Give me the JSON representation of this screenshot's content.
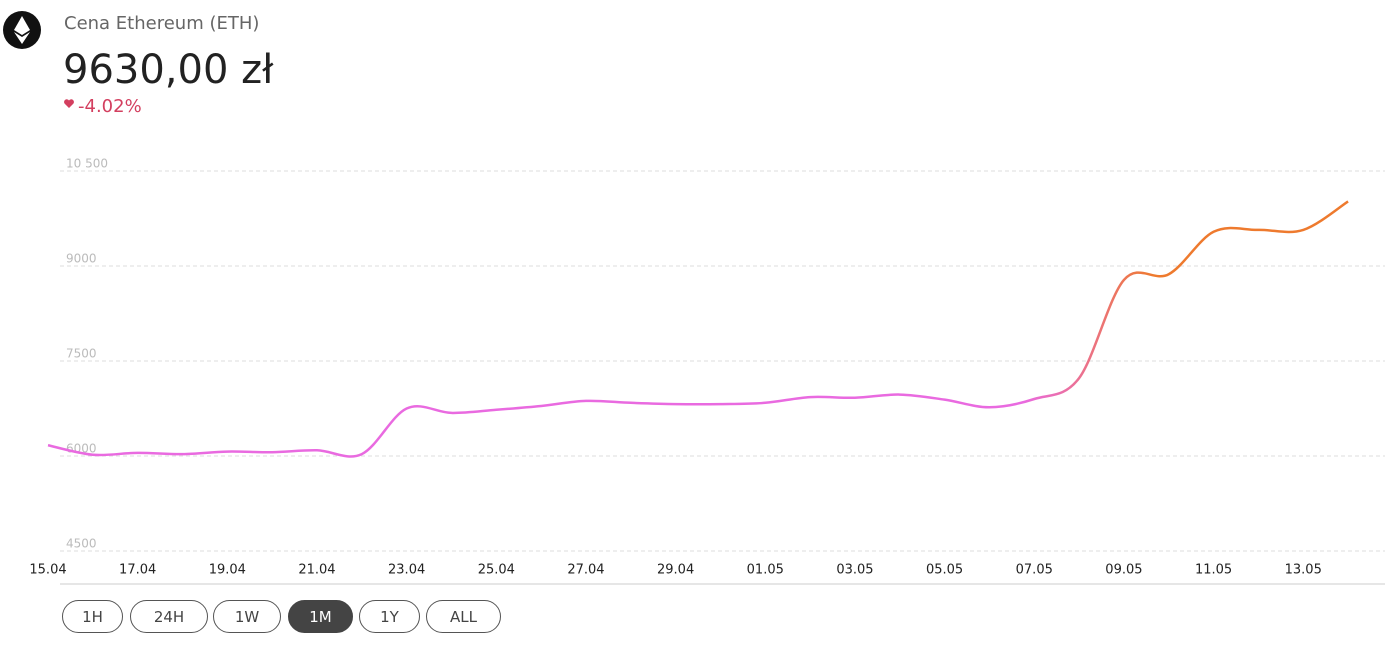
{
  "header": {
    "title": "Cena Ethereum (ETH)",
    "price": "9630,00 zł",
    "change": "-4.02%"
  },
  "ranges": [
    "1H",
    "24H",
    "1W",
    "1M",
    "1Y",
    "ALL"
  ],
  "selected_range": "1M",
  "chart_data": {
    "type": "line",
    "x": [
      "15.04",
      "16.04",
      "17.04",
      "18.04",
      "19.04",
      "20.04",
      "21.04",
      "22.04",
      "23.04",
      "24.04",
      "25.04",
      "26.04",
      "27.04",
      "28.04",
      "29.04",
      "30.04",
      "01.05",
      "02.05",
      "03.05",
      "04.05",
      "05.05",
      "06.05",
      "07.05",
      "08.05",
      "09.05",
      "10.05",
      "11.05",
      "12.05",
      "13.05",
      "14.05"
    ],
    "series": [
      {
        "name": "ETH",
        "gradient": [
          "#e96ae0",
          "#ee7a2e"
        ],
        "values": [
          6170,
          6020,
          6050,
          6030,
          6070,
          6060,
          6090,
          6030,
          6750,
          6680,
          6730,
          6790,
          6870,
          6840,
          6820,
          6820,
          6840,
          6930,
          6920,
          6970,
          6890,
          6770,
          6900,
          7230,
          8780,
          8870,
          9540,
          9570,
          9570,
          10020
        ]
      }
    ],
    "xticks": [
      "15.04",
      "17.04",
      "19.04",
      "21.04",
      "23.04",
      "25.04",
      "27.04",
      "29.04",
      "01.05",
      "03.05",
      "05.05",
      "07.05",
      "09.05",
      "11.05",
      "13.05"
    ],
    "ylim": [
      4500,
      10500
    ],
    "yticks": [
      {
        "value": 10500,
        "label": "10 500"
      },
      9000,
      7500,
      6000,
      4500
    ],
    "grid": true
  }
}
